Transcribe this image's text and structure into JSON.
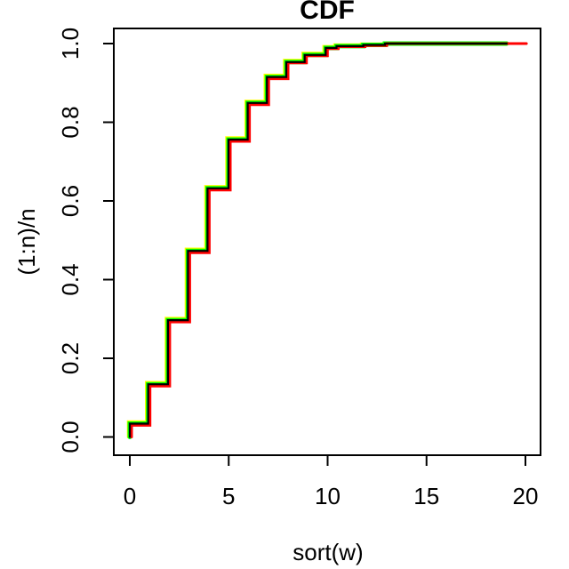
{
  "page": {
    "background": "#ffffff"
  },
  "chart_data": {
    "type": "line",
    "subtype": "step-cdf",
    "title": "CDF",
    "xlabel": "sort(w)",
    "ylabel": "(1:n)/n",
    "xlim": [
      0,
      20
    ],
    "ylim": [
      0,
      1
    ],
    "grid": false,
    "legend": null,
    "x_ticks": [
      0,
      5,
      10,
      15,
      20
    ],
    "x_tick_labels": [
      "0",
      "5",
      "10",
      "15",
      "20"
    ],
    "y_ticks": [
      0.0,
      0.2,
      0.4,
      0.6,
      0.8,
      1.0
    ],
    "y_tick_labels": [
      "0.0",
      "0.2",
      "0.4",
      "0.6",
      "0.8",
      "1.0"
    ],
    "axis_color": "#000000",
    "series": [
      {
        "name": "yellow-cdf",
        "color": "#FFFF00",
        "line_width": 3,
        "x_end": 19.0,
        "steps": [
          [
            -0.08,
            0.039
          ],
          [
            0.83,
            0.139
          ],
          [
            1.83,
            0.302
          ],
          [
            2.84,
            0.478
          ],
          [
            3.83,
            0.637
          ],
          [
            4.89,
            0.761
          ],
          [
            5.86,
            0.854
          ],
          [
            6.83,
            0.92
          ],
          [
            7.81,
            0.958
          ],
          [
            8.74,
            0.976
          ],
          [
            9.8,
            0.993
          ],
          [
            10.35,
            0.997
          ],
          [
            11.7,
            0.9995
          ],
          [
            12.8,
            1.0
          ]
        ]
      },
      {
        "name": "green-cdf",
        "color": "#00FF00",
        "line_width": 5,
        "x_end": 19.05,
        "steps": [
          [
            0,
            0.034
          ],
          [
            0.93,
            0.134
          ],
          [
            1.93,
            0.297
          ],
          [
            2.94,
            0.473
          ],
          [
            3.93,
            0.632
          ],
          [
            4.99,
            0.756
          ],
          [
            5.96,
            0.849
          ],
          [
            6.93,
            0.915
          ],
          [
            7.91,
            0.953
          ],
          [
            8.84,
            0.971
          ],
          [
            9.9,
            0.989
          ],
          [
            10.45,
            0.9935
          ],
          [
            11.8,
            0.9965
          ],
          [
            12.9,
            1.0
          ]
        ]
      },
      {
        "name": "red-cdf",
        "color": "#FF0000",
        "line_width": 3,
        "x_end": 20.05,
        "steps": [
          [
            0.09,
            0.0295
          ],
          [
            1.02,
            0.1295
          ],
          [
            2.02,
            0.2925
          ],
          [
            3.03,
            0.4685
          ],
          [
            4.02,
            0.6275
          ],
          [
            5.08,
            0.7515
          ],
          [
            6.05,
            0.8445
          ],
          [
            7.02,
            0.9105
          ],
          [
            8.0,
            0.951
          ],
          [
            8.93,
            0.969
          ],
          [
            9.99,
            0.987
          ],
          [
            10.54,
            0.992
          ],
          [
            11.89,
            0.995
          ],
          [
            12.99,
            1.0
          ]
        ]
      },
      {
        "name": "black-cdf",
        "color": "#000000",
        "line_width": 2.2,
        "x_end": 19.05,
        "steps": [
          [
            0,
            0.034
          ],
          [
            0.93,
            0.134
          ],
          [
            1.93,
            0.297
          ],
          [
            2.94,
            0.473
          ],
          [
            3.93,
            0.632
          ],
          [
            4.99,
            0.756
          ],
          [
            5.96,
            0.849
          ],
          [
            6.93,
            0.915
          ],
          [
            7.91,
            0.953
          ],
          [
            8.84,
            0.971
          ],
          [
            9.9,
            0.989
          ],
          [
            10.45,
            0.9935
          ],
          [
            11.8,
            0.9965
          ],
          [
            12.9,
            1.0
          ]
        ]
      }
    ]
  }
}
